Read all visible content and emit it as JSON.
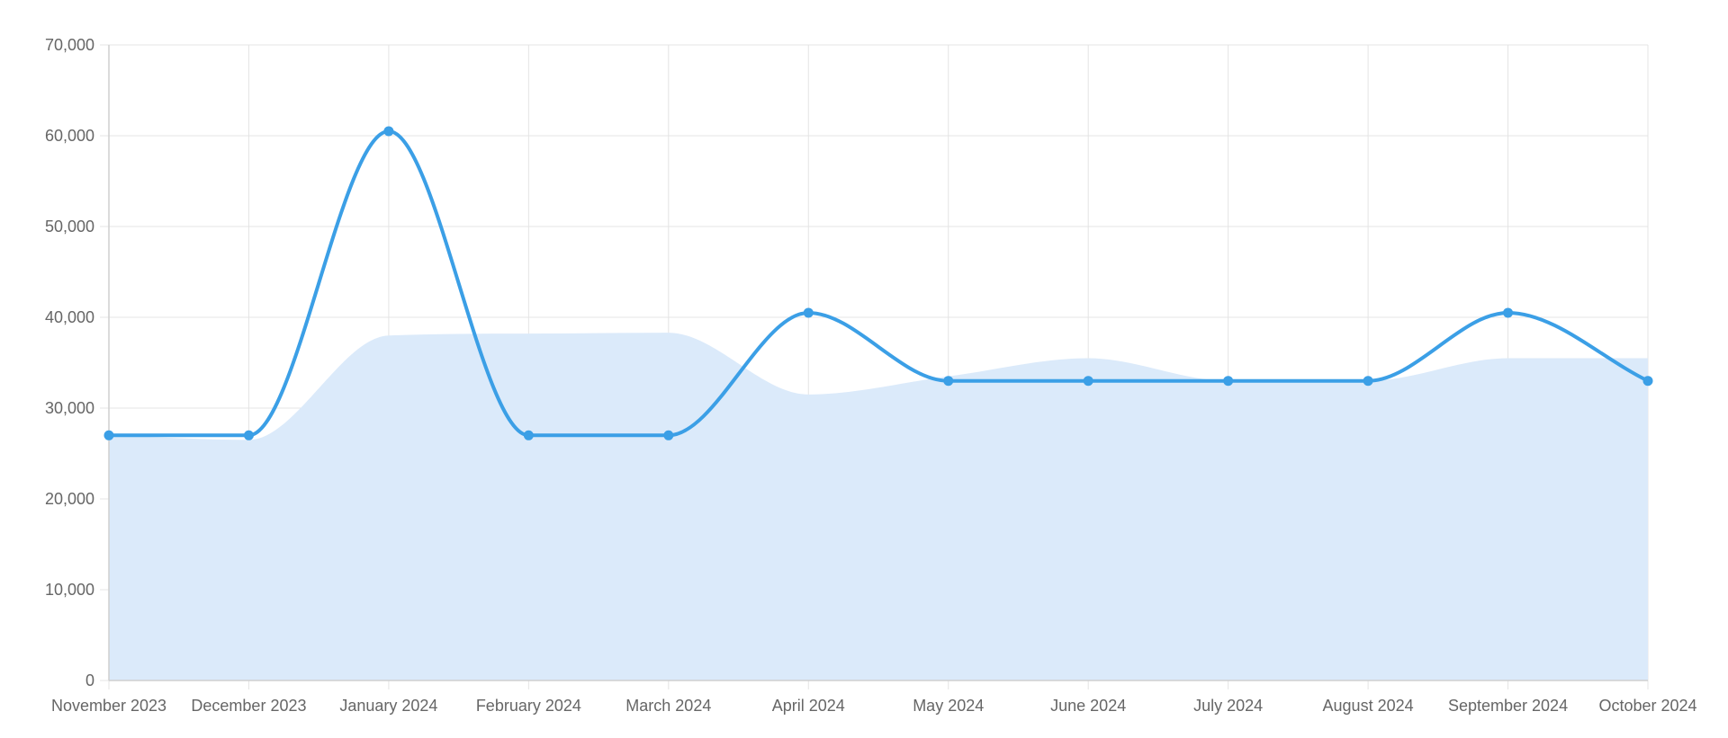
{
  "chart_data": {
    "type": "line",
    "title": "",
    "xlabel": "",
    "ylabel": "",
    "categories": [
      "November 2023",
      "December 2023",
      "January 2024",
      "February 2024",
      "March 2024",
      "April 2024",
      "May 2024",
      "June 2024",
      "July 2024",
      "August 2024",
      "September 2024",
      "October 2024"
    ],
    "ylim": [
      0,
      70000
    ],
    "yticks": [
      0,
      10000,
      20000,
      30000,
      40000,
      50000,
      60000,
      70000
    ],
    "ytick_labels": [
      "0",
      "10,000",
      "20,000",
      "30,000",
      "40,000",
      "50,000",
      "60,000",
      "70,000"
    ],
    "grid": true,
    "legend": "none",
    "series": [
      {
        "style": "area",
        "color": "#dbeafa",
        "values": [
          27000,
          26500,
          38000,
          38200,
          38300,
          31500,
          33500,
          35500,
          33000,
          33000,
          35500,
          35500
        ]
      },
      {
        "style": "line",
        "color": "#3b9fe6",
        "markers": true,
        "values": [
          27000,
          27000,
          60500,
          27000,
          27000,
          40500,
          33000,
          33000,
          33000,
          33000,
          40500,
          33000
        ]
      }
    ]
  }
}
